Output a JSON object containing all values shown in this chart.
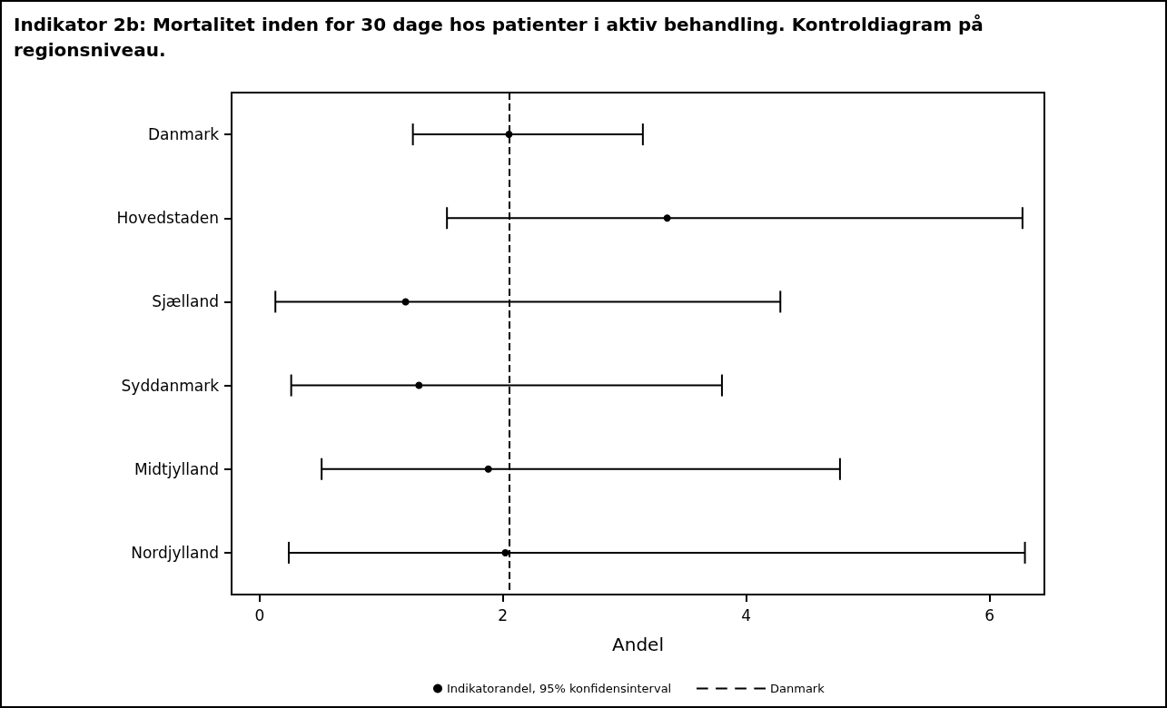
{
  "chart_data": {
    "type": "scatter",
    "title": "Indikator 2b: Mortalitet inden for 30 dage hos patienter i aktiv behandling. Kontroldiagram på regionsniveau.",
    "xlabel": "Andel",
    "orientation": "horizontal",
    "categories": [
      "Danmark",
      "Hovedstaden",
      "Sjælland",
      "Syddanmark",
      "Midtjylland",
      "Nordjylland"
    ],
    "series": [
      {
        "name": "Indikatorandel, 95% konfidensinterval",
        "color": "#000000",
        "values": [
          2.05,
          3.35,
          1.2,
          1.31,
          1.88,
          2.02
        ],
        "errors": [
          [
            1.26,
            3.15
          ],
          [
            1.54,
            6.27
          ],
          [
            0.13,
            4.28
          ],
          [
            0.26,
            3.8
          ],
          [
            0.51,
            4.77
          ],
          [
            0.24,
            6.29
          ]
        ]
      }
    ],
    "xlim": [
      -0.23,
      6.45
    ],
    "xticks": [
      0,
      2,
      4,
      6
    ],
    "ref_lines": [
      {
        "axis": "x",
        "value": 2.05,
        "label": "Danmark",
        "color": "#000000",
        "line_style": "dashed"
      }
    ],
    "marker": "circle",
    "grid": false,
    "legend": "bottom"
  }
}
